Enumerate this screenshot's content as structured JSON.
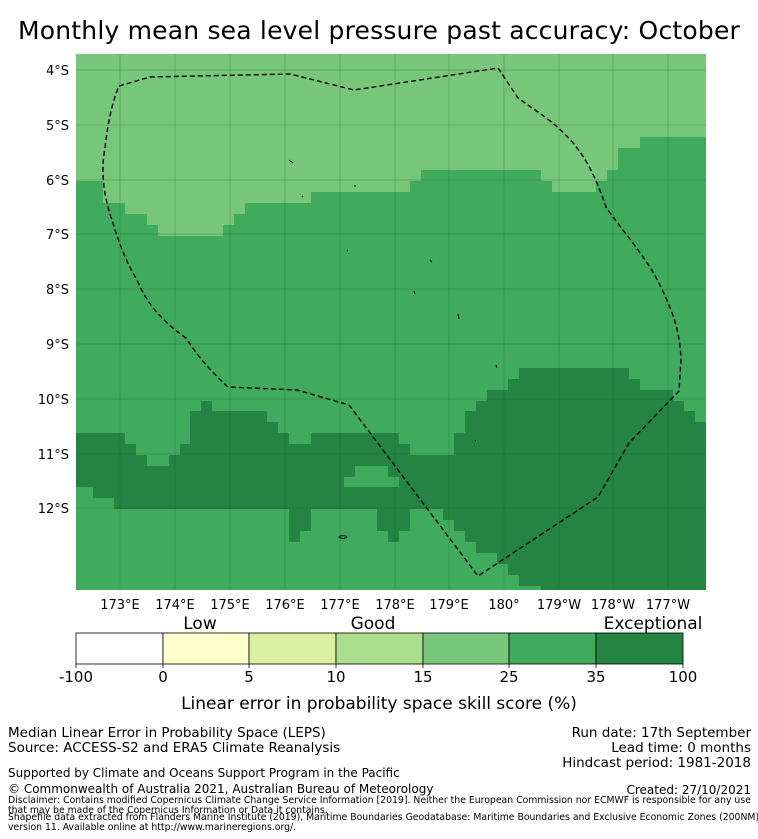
{
  "title": "Monthly mean sea level pressure past accuracy: October",
  "map": {
    "lat_labels": [
      "4°S",
      "5°S",
      "6°S",
      "7°S",
      "8°S",
      "9°S",
      "10°S",
      "11°S",
      "12°S"
    ],
    "lon_labels": [
      "173°E",
      "174°E",
      "175°E",
      "176°E",
      "177°E",
      "178°E",
      "179°E",
      "180°",
      "179°W",
      "178°W",
      "177°W"
    ],
    "colors": {
      "c15_25": "#78c679",
      "c25_35": "#41ab5d",
      "c35_100": "#238443",
      "outline": "#000000"
    }
  },
  "colorbar": {
    "categories": [
      "Low",
      "Good",
      "Exceptional"
    ],
    "ticks": [
      "-100",
      "0",
      "5",
      "10",
      "15",
      "25",
      "35",
      "100"
    ],
    "colors": [
      "#ffffff",
      "#ffffcc",
      "#d9f0a3",
      "#addd8e",
      "#78c679",
      "#41ab5d",
      "#238443"
    ],
    "title": "Linear error in probability space skill score (%)"
  },
  "info": {
    "line1": "Median Linear Error in Probability Space (LEPS)",
    "line2": "Source: ACCESS-S2 and ERA5 Climate Reanalysis",
    "run_date": "Run date: 17th September",
    "lead_time": "Lead time: 0 months",
    "hindcast": "Hindcast period: 1981-2018",
    "supported": "Supported by Climate and Oceans Support Program in the Pacific",
    "copyright": "© Commonwealth of Australia 2021, Australian Bureau of Meteorology",
    "created": "Created: 27/10/2021",
    "disclaimer1": "Disclaimer: Contains modified Copernicus Climate Change Service Information [2019]. Neither the European Commission nor ECMWF is responsible for any use",
    "disclaimer2": "that may be made of the Copernicus Information or Data it contains.",
    "shapefile1": "Shapefile data extracted from Flanders Marine Institute (2019), Maritime Boundaries Geodatabase: Maritime Boundaries and Exclusive Economic Zones (200NM),",
    "shapefile2": "version 11. Available online at http://www.marineregions.org/."
  }
}
